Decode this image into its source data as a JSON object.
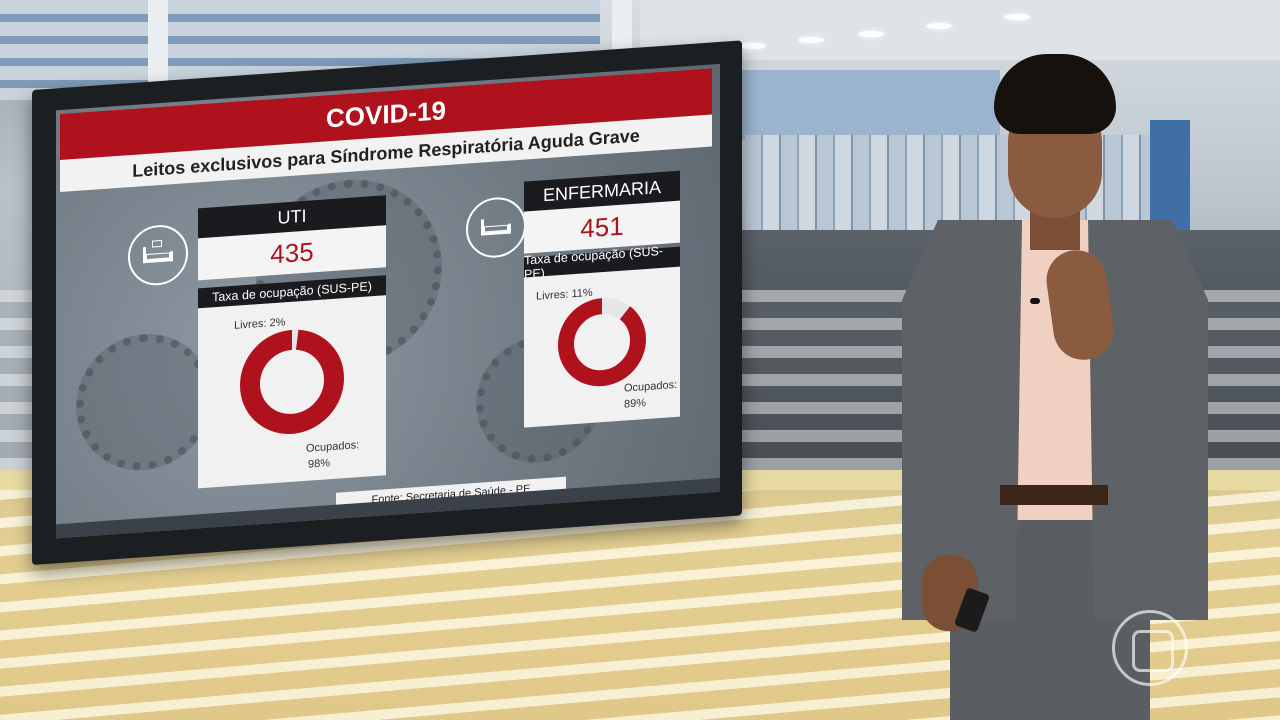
{
  "tv_graphic": {
    "header_title": "COVID-19",
    "subtitle": "Leitos exclusivos para Síndrome Respiratória Aguda Grave",
    "source": "Fonte: Secretaria de Saúde - PE",
    "colors": {
      "accent_red": "#b0121d",
      "dark_label": "#1b1b1f"
    }
  },
  "cards": [
    {
      "icon": "icu-bed-icon",
      "title": "UTI",
      "value": "435",
      "rate_label": "Taxa de ocupação (SUS-PE)",
      "free_label": "Livres: 2%",
      "occupied_label": "Ocupados:",
      "occupied_value": "98%",
      "occupied_fraction": 0.98
    },
    {
      "icon": "ward-bed-icon",
      "title": "ENFERMARIA",
      "value": "451",
      "rate_label": "Taxa de ocupação (SUS-PE)",
      "free_label": "Livres: 11%",
      "occupied_label": "Ocupados:",
      "occupied_value": "89%",
      "occupied_fraction": 0.89
    }
  ]
}
